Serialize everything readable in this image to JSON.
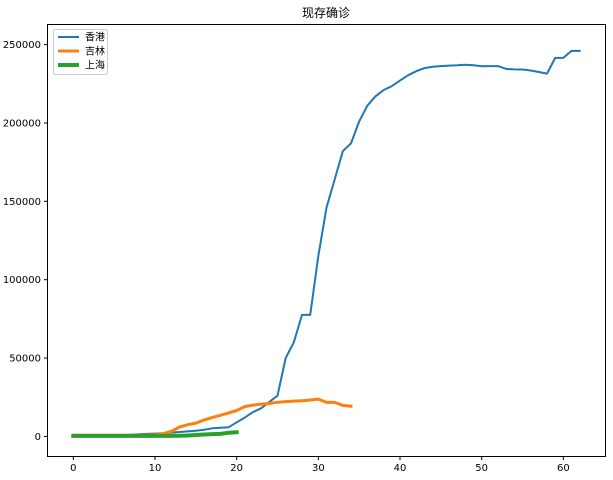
{
  "chart_data": {
    "type": "line",
    "title": "现存确诊",
    "xlabel": "",
    "ylabel": "",
    "xlim": [
      -3.1,
      65.1
    ],
    "ylim": [
      -12500,
      262500
    ],
    "xticks": [
      0,
      10,
      20,
      30,
      40,
      50,
      60
    ],
    "yticks": [
      0,
      50000,
      100000,
      150000,
      200000,
      250000
    ],
    "grid": false,
    "legend_position": "top-left",
    "series": [
      {
        "name": "香港",
        "color": "#1f77b4",
        "x": [
          0,
          1,
          2,
          3,
          4,
          5,
          6,
          7,
          8,
          9,
          10,
          11,
          12,
          13,
          14,
          15,
          16,
          17,
          18,
          19,
          20,
          21,
          22,
          23,
          24,
          25,
          26,
          27,
          28,
          29,
          30,
          31,
          32,
          33,
          34,
          35,
          36,
          37,
          38,
          39,
          40,
          41,
          42,
          43,
          44,
          45,
          46,
          47,
          48,
          49,
          50,
          51,
          52,
          53,
          54,
          55,
          56,
          57,
          58,
          59,
          60,
          61,
          62
        ],
        "y": [
          300,
          350,
          400,
          450,
          500,
          600,
          800,
          1000,
          1400,
          1600,
          1800,
          2000,
          2400,
          2800,
          3200,
          3600,
          4200,
          5200,
          5500,
          5800,
          9000,
          12000,
          15500,
          18000,
          22000,
          26000,
          50000,
          60000,
          77500,
          77500,
          115000,
          146000,
          164000,
          182000,
          187000,
          201000,
          211000,
          217000,
          221000,
          223500,
          227000,
          230500,
          233000,
          235000,
          235800,
          236300,
          236600,
          236800,
          237200,
          236800,
          236200,
          236300,
          236300,
          234500,
          234200,
          234100,
          233500,
          232500,
          231500,
          241500,
          241500,
          246000,
          246000
        ]
      },
      {
        "name": "吉林",
        "color": "#ff7f0e",
        "x": [
          0,
          1,
          2,
          3,
          4,
          5,
          6,
          7,
          8,
          9,
          10,
          11,
          12,
          13,
          14,
          15,
          16,
          17,
          18,
          19,
          20,
          21,
          22,
          23,
          24,
          25,
          26,
          27,
          28,
          29,
          30,
          31,
          32,
          33,
          34
        ],
        "y": [
          800,
          800,
          800,
          800,
          800,
          800,
          800,
          800,
          800,
          900,
          1000,
          1800,
          3200,
          6000,
          7500,
          8500,
          10500,
          12000,
          13500,
          15000,
          16500,
          19000,
          20000,
          20600,
          21000,
          21800,
          22200,
          22500,
          22800,
          23200,
          23800,
          21700,
          21700,
          19800,
          19300
        ]
      },
      {
        "name": "上海",
        "color": "#2ca02c",
        "x": [
          0,
          1,
          2,
          3,
          4,
          5,
          6,
          7,
          8,
          9,
          10,
          11,
          12,
          13,
          14,
          15,
          16,
          17,
          18,
          19,
          20
        ],
        "y": [
          300,
          300,
          300,
          300,
          300,
          300,
          300,
          300,
          300,
          300,
          300,
          300,
          350,
          400,
          600,
          900,
          1200,
          1500,
          1600,
          2300,
          2600
        ]
      }
    ]
  }
}
